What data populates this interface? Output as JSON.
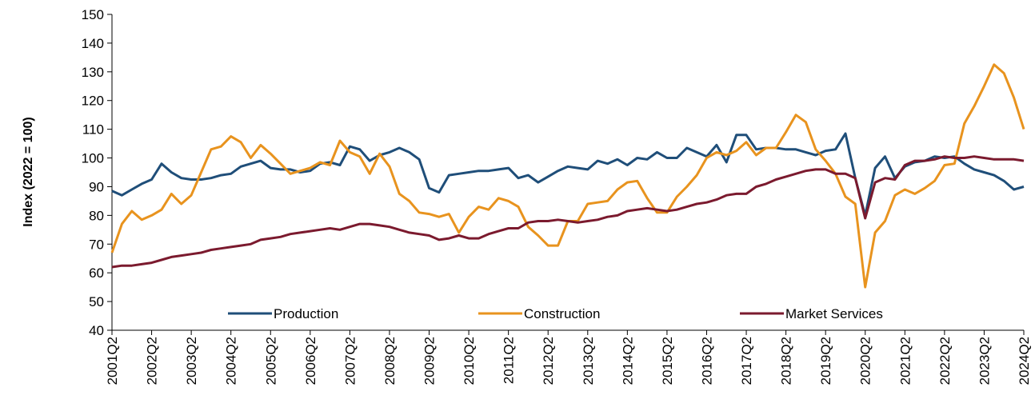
{
  "chart_data": {
    "type": "line",
    "y_label": "Index  (2022 = 100)",
    "categories": [
      "2001Q2",
      null,
      null,
      null,
      "2002Q2",
      null,
      null,
      null,
      "2003Q2",
      null,
      null,
      null,
      "2004Q2",
      null,
      null,
      null,
      "2005Q2",
      null,
      null,
      null,
      "2006Q2",
      null,
      null,
      null,
      "2007Q2",
      null,
      null,
      null,
      "2008Q2",
      null,
      null,
      null,
      "2009Q2",
      null,
      null,
      null,
      "2010Q2",
      null,
      null,
      null,
      "2011Q2",
      null,
      null,
      null,
      "2012Q2",
      null,
      null,
      null,
      "2013Q2",
      null,
      null,
      null,
      "2014Q2",
      null,
      null,
      null,
      "2015Q2",
      null,
      null,
      null,
      "2016Q2",
      null,
      null,
      null,
      "2017Q2",
      null,
      null,
      null,
      "2018Q2",
      null,
      null,
      null,
      "2019Q2",
      null,
      null,
      null,
      "2020Q2",
      null,
      null,
      null,
      "2021Q2",
      null,
      null,
      null,
      "2022Q2",
      null,
      null,
      null,
      "2023Q2",
      null,
      null,
      null,
      "2024Q2"
    ],
    "ylim": [
      40,
      150
    ],
    "yticks": [
      40,
      50,
      60,
      70,
      80,
      90,
      100,
      110,
      120,
      130,
      140,
      150
    ],
    "grid": false,
    "legend": "bottom",
    "series": [
      {
        "name": "Production",
        "color": "#1f4e79",
        "values": [
          88.5,
          87,
          89,
          91,
          92.5,
          98,
          95,
          93,
          92.5,
          92.5,
          93,
          94,
          94.5,
          97,
          98,
          99,
          96.5,
          96,
          96,
          95,
          95.5,
          98,
          98.5,
          97.5,
          104,
          103,
          99,
          101,
          102,
          103.5,
          102,
          99.5,
          89.5,
          88,
          94,
          94.5,
          95,
          95.5,
          95.5,
          96,
          96.5,
          93,
          94,
          91.5,
          93.5,
          95.5,
          97,
          96.5,
          96,
          99,
          98,
          99.5,
          97.5,
          100,
          99.5,
          102,
          100,
          100,
          103.5,
          102,
          100.5,
          104.5,
          98.5,
          108,
          108,
          103,
          103.5,
          103.5,
          103,
          103,
          102,
          101,
          102.5,
          103,
          108.5,
          93,
          80,
          96.5,
          100.5,
          93,
          97,
          98.5,
          99,
          100.5,
          100,
          100.5,
          98,
          96,
          95,
          94,
          92,
          89,
          90
        ]
      },
      {
        "name": "Construction",
        "color": "#e8931e",
        "values": [
          67,
          77,
          81.5,
          78.5,
          80,
          82,
          87.5,
          84,
          87,
          95,
          103,
          104,
          107.5,
          105.5,
          100,
          104.5,
          101.5,
          98,
          94.5,
          95.5,
          96.5,
          98.5,
          97.5,
          106,
          102,
          100.5,
          94.5,
          101.5,
          97,
          87.5,
          85,
          81,
          80.5,
          79.5,
          80.5,
          74,
          79.5,
          83,
          82,
          86,
          85,
          83,
          76,
          73,
          69.5,
          69.5,
          78,
          78,
          84,
          84.5,
          85,
          89,
          91.5,
          92,
          86,
          81,
          81,
          86.5,
          90,
          94,
          100,
          102,
          101,
          102.5,
          105.5,
          101,
          103.5,
          103.5,
          109,
          115,
          112.5,
          103,
          99,
          94.5,
          86.5,
          84,
          55,
          74,
          78,
          87,
          89,
          87.5,
          89.5,
          92,
          97.5,
          98,
          112,
          118,
          125,
          132.5,
          129.5,
          121,
          110
        ]
      },
      {
        "name": "Market Services",
        "color": "#7b1a2e",
        "values": [
          62,
          62.5,
          62.5,
          63,
          63.5,
          64.5,
          65.5,
          66,
          66.5,
          67,
          68,
          68.5,
          69,
          69.5,
          70,
          71.5,
          72,
          72.5,
          73.5,
          74,
          74.5,
          75,
          75.5,
          75,
          76,
          77,
          77,
          76.5,
          76,
          75,
          74,
          73.5,
          73,
          71.5,
          72,
          73,
          72,
          72,
          73.5,
          74.5,
          75.5,
          75.5,
          77.5,
          78,
          78,
          78.5,
          78,
          77.5,
          78,
          78.5,
          79.5,
          80,
          81.5,
          82,
          82.5,
          82,
          81.5,
          82,
          83,
          84,
          84.5,
          85.5,
          87,
          87.5,
          87.5,
          90,
          91,
          92.5,
          93.5,
          94.5,
          95.5,
          96,
          96,
          94.5,
          94.5,
          93,
          79,
          91.5,
          93,
          92.5,
          97.5,
          99,
          99,
          99.5,
          100.5,
          100,
          100,
          100.5,
          100,
          99.5,
          99.5,
          99.5,
          99
        ]
      }
    ]
  }
}
